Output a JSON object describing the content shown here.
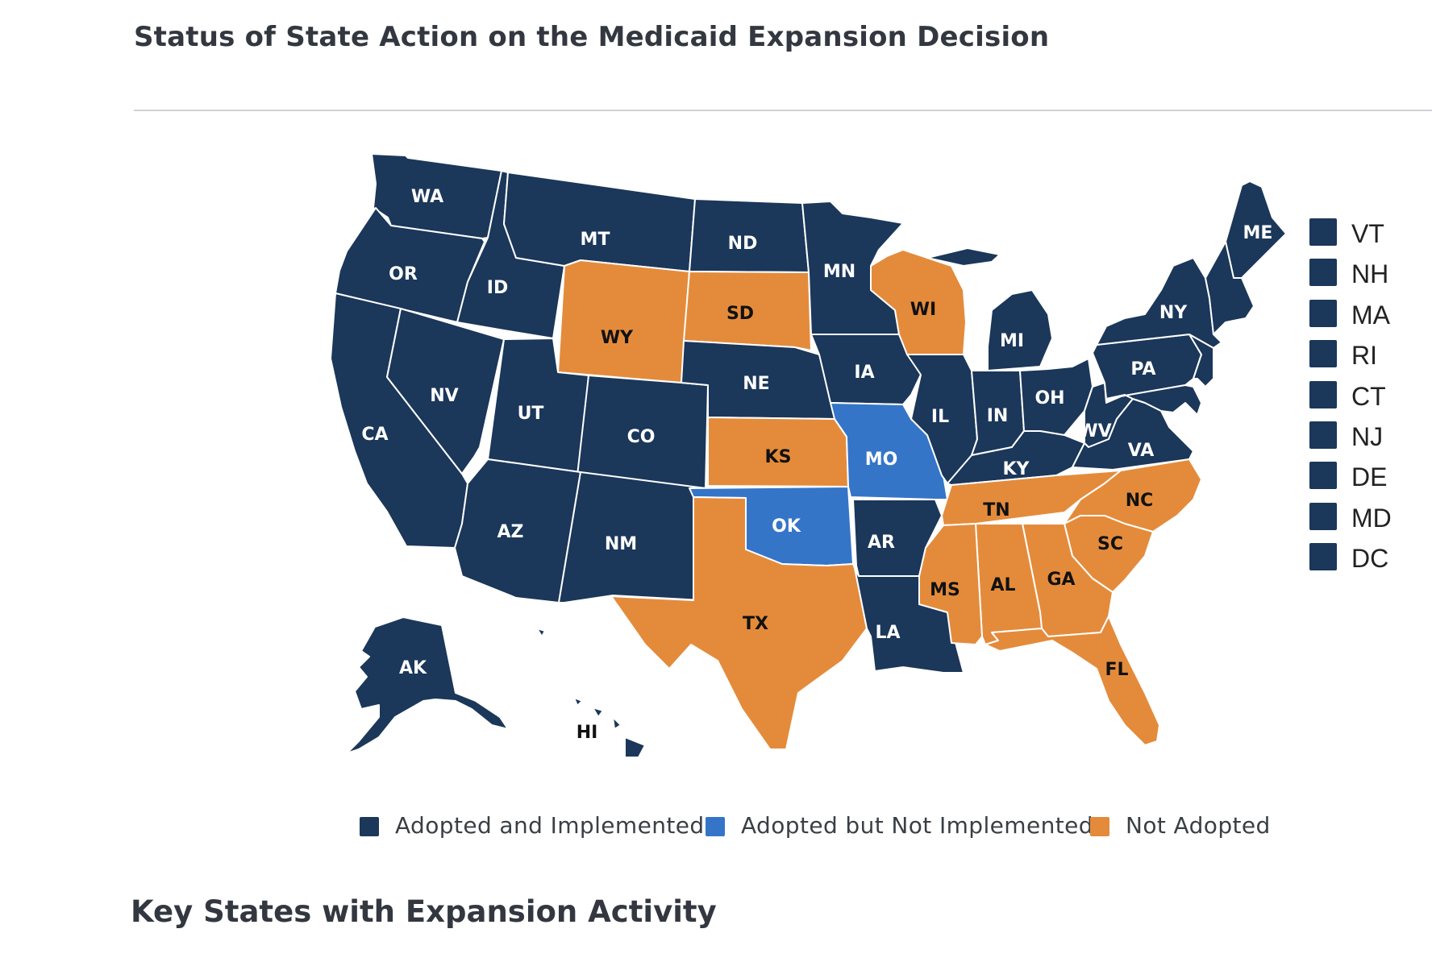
{
  "header": {
    "title": "Status of State Action on the Medicaid Expansion Decision"
  },
  "colors": {
    "adopted_implemented": "#1b375a",
    "adopted_not_implemented": "#3575c8",
    "not_adopted": "#e48b3b",
    "label_on_dark": "#ffffff",
    "label_on_orange": "#111111"
  },
  "map": {
    "states": [
      {
        "abbr": "WA",
        "status": "adopted_implemented"
      },
      {
        "abbr": "OR",
        "status": "adopted_implemented"
      },
      {
        "abbr": "CA",
        "status": "adopted_implemented"
      },
      {
        "abbr": "NV",
        "status": "adopted_implemented"
      },
      {
        "abbr": "ID",
        "status": "adopted_implemented"
      },
      {
        "abbr": "MT",
        "status": "adopted_implemented"
      },
      {
        "abbr": "WY",
        "status": "not_adopted"
      },
      {
        "abbr": "UT",
        "status": "adopted_implemented"
      },
      {
        "abbr": "CO",
        "status": "adopted_implemented"
      },
      {
        "abbr": "AZ",
        "status": "adopted_implemented"
      },
      {
        "abbr": "NM",
        "status": "adopted_implemented"
      },
      {
        "abbr": "ND",
        "status": "adopted_implemented"
      },
      {
        "abbr": "SD",
        "status": "not_adopted"
      },
      {
        "abbr": "NE",
        "status": "adopted_implemented"
      },
      {
        "abbr": "KS",
        "status": "not_adopted"
      },
      {
        "abbr": "OK",
        "status": "adopted_not_implemented"
      },
      {
        "abbr": "TX",
        "status": "not_adopted"
      },
      {
        "abbr": "MN",
        "status": "adopted_implemented"
      },
      {
        "abbr": "IA",
        "status": "adopted_implemented"
      },
      {
        "abbr": "MO",
        "status": "adopted_not_implemented"
      },
      {
        "abbr": "AR",
        "status": "adopted_implemented"
      },
      {
        "abbr": "LA",
        "status": "adopted_implemented"
      },
      {
        "abbr": "WI",
        "status": "not_adopted"
      },
      {
        "abbr": "IL",
        "status": "adopted_implemented"
      },
      {
        "abbr": "MI",
        "status": "adopted_implemented"
      },
      {
        "abbr": "IN",
        "status": "adopted_implemented"
      },
      {
        "abbr": "OH",
        "status": "adopted_implemented"
      },
      {
        "abbr": "KY",
        "status": "adopted_implemented"
      },
      {
        "abbr": "TN",
        "status": "not_adopted"
      },
      {
        "abbr": "MS",
        "status": "not_adopted"
      },
      {
        "abbr": "AL",
        "status": "not_adopted"
      },
      {
        "abbr": "GA",
        "status": "not_adopted"
      },
      {
        "abbr": "FL",
        "status": "not_adopted"
      },
      {
        "abbr": "SC",
        "status": "not_adopted"
      },
      {
        "abbr": "NC",
        "status": "not_adopted"
      },
      {
        "abbr": "VA",
        "status": "adopted_implemented"
      },
      {
        "abbr": "WV",
        "status": "adopted_implemented"
      },
      {
        "abbr": "PA",
        "status": "adopted_implemented"
      },
      {
        "abbr": "NY",
        "status": "adopted_implemented"
      },
      {
        "abbr": "ME",
        "status": "adopted_implemented"
      },
      {
        "abbr": "AK",
        "status": "adopted_implemented"
      },
      {
        "abbr": "HI",
        "status": "adopted_implemented"
      }
    ],
    "small_states": [
      {
        "abbr": "VT",
        "status": "adopted_implemented"
      },
      {
        "abbr": "NH",
        "status": "adopted_implemented"
      },
      {
        "abbr": "MA",
        "status": "adopted_implemented"
      },
      {
        "abbr": "RI",
        "status": "adopted_implemented"
      },
      {
        "abbr": "CT",
        "status": "adopted_implemented"
      },
      {
        "abbr": "NJ",
        "status": "adopted_implemented"
      },
      {
        "abbr": "DE",
        "status": "adopted_implemented"
      },
      {
        "abbr": "MD",
        "status": "adopted_implemented"
      },
      {
        "abbr": "DC",
        "status": "adopted_implemented"
      }
    ]
  },
  "legend": [
    {
      "status": "adopted_implemented",
      "label": "Adopted and Implemented"
    },
    {
      "status": "adopted_not_implemented",
      "label": "Adopted but Not Implemented"
    },
    {
      "status": "not_adopted",
      "label": "Not Adopted"
    }
  ],
  "section": {
    "title": "Key States with Expansion Activity"
  }
}
